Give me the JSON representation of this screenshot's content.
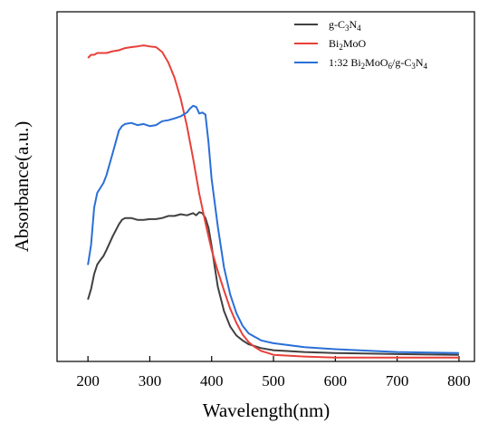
{
  "chart_data": {
    "type": "line",
    "title": "",
    "xlabel": "Wavelength(nm)",
    "ylabel": "Absorbance(a.u.)",
    "xlim": [
      150,
      825
    ],
    "ylim": [
      0,
      1.0
    ],
    "xticks": [
      "200",
      "300",
      "400",
      "500",
      "600",
      "700",
      "800"
    ],
    "y_tick_labels_shown": false,
    "grid": false,
    "legend_position": "top-right",
    "series": [
      {
        "name": "g-C3N4",
        "legend": {
          "pre": "g-C",
          "sub1": "3",
          "mid": "N",
          "sub2": "4",
          "post": ""
        },
        "color": "#404040",
        "points": [
          [
            200,
            0.177
          ],
          [
            205,
            0.207
          ],
          [
            210,
            0.25
          ],
          [
            215,
            0.277
          ],
          [
            220,
            0.29
          ],
          [
            225,
            0.301
          ],
          [
            230,
            0.319
          ],
          [
            240,
            0.358
          ],
          [
            250,
            0.392
          ],
          [
            255,
            0.405
          ],
          [
            260,
            0.41
          ],
          [
            270,
            0.41
          ],
          [
            280,
            0.405
          ],
          [
            290,
            0.405
          ],
          [
            300,
            0.407
          ],
          [
            310,
            0.407
          ],
          [
            320,
            0.41
          ],
          [
            330,
            0.416
          ],
          [
            340,
            0.416
          ],
          [
            350,
            0.421
          ],
          [
            360,
            0.418
          ],
          [
            370,
            0.424
          ],
          [
            375,
            0.418
          ],
          [
            380,
            0.427
          ],
          [
            385,
            0.424
          ],
          [
            390,
            0.41
          ],
          [
            395,
            0.382
          ],
          [
            400,
            0.33
          ],
          [
            405,
            0.27
          ],
          [
            410,
            0.213
          ],
          [
            420,
            0.144
          ],
          [
            430,
            0.1
          ],
          [
            440,
            0.074
          ],
          [
            450,
            0.06
          ],
          [
            460,
            0.049
          ],
          [
            480,
            0.038
          ],
          [
            500,
            0.032
          ],
          [
            550,
            0.027
          ],
          [
            600,
            0.024
          ],
          [
            700,
            0.021
          ],
          [
            800,
            0.019
          ]
        ]
      },
      {
        "name": "Bi2MoO",
        "legend": {
          "pre": "Bi",
          "sub1": "2",
          "mid": "MoO",
          "sub2": "",
          "post": ""
        },
        "color": "#e8403a",
        "points": [
          [
            200,
            0.868
          ],
          [
            205,
            0.877
          ],
          [
            210,
            0.877
          ],
          [
            215,
            0.882
          ],
          [
            220,
            0.882
          ],
          [
            230,
            0.882
          ],
          [
            240,
            0.887
          ],
          [
            250,
            0.89
          ],
          [
            260,
            0.896
          ],
          [
            270,
            0.899
          ],
          [
            280,
            0.901
          ],
          [
            290,
            0.904
          ],
          [
            300,
            0.901
          ],
          [
            310,
            0.899
          ],
          [
            320,
            0.885
          ],
          [
            330,
            0.855
          ],
          [
            340,
            0.811
          ],
          [
            350,
            0.751
          ],
          [
            360,
            0.674
          ],
          [
            370,
            0.58
          ],
          [
            380,
            0.479
          ],
          [
            390,
            0.396
          ],
          [
            400,
            0.319
          ],
          [
            410,
            0.258
          ],
          [
            420,
            0.203
          ],
          [
            430,
            0.151
          ],
          [
            440,
            0.11
          ],
          [
            450,
            0.077
          ],
          [
            460,
            0.055
          ],
          [
            470,
            0.041
          ],
          [
            480,
            0.03
          ],
          [
            490,
            0.025
          ],
          [
            500,
            0.019
          ],
          [
            550,
            0.014
          ],
          [
            600,
            0.011
          ],
          [
            700,
            0.011
          ],
          [
            800,
            0.011
          ]
        ]
      },
      {
        "name": "1:32 Bi2MoO6/g-C3N4",
        "legend": {
          "pre": "1:32 Bi",
          "sub1": "2",
          "mid": "MoO",
          "sub2": "6",
          "post": "/g-C",
          "sub3": "3",
          "end": "N",
          "sub4": "4"
        },
        "color": "#2a6fd6",
        "points": [
          [
            200,
            0.276
          ],
          [
            205,
            0.334
          ],
          [
            210,
            0.44
          ],
          [
            215,
            0.482
          ],
          [
            220,
            0.496
          ],
          [
            225,
            0.51
          ],
          [
            230,
            0.533
          ],
          [
            240,
            0.596
          ],
          [
            250,
            0.66
          ],
          [
            255,
            0.673
          ],
          [
            260,
            0.679
          ],
          [
            270,
            0.682
          ],
          [
            280,
            0.676
          ],
          [
            290,
            0.679
          ],
          [
            300,
            0.673
          ],
          [
            310,
            0.676
          ],
          [
            320,
            0.687
          ],
          [
            330,
            0.69
          ],
          [
            340,
            0.695
          ],
          [
            350,
            0.701
          ],
          [
            360,
            0.712
          ],
          [
            365,
            0.723
          ],
          [
            370,
            0.731
          ],
          [
            375,
            0.728
          ],
          [
            380,
            0.709
          ],
          [
            385,
            0.712
          ],
          [
            390,
            0.706
          ],
          [
            395,
            0.626
          ],
          [
            400,
            0.522
          ],
          [
            410,
            0.385
          ],
          [
            420,
            0.269
          ],
          [
            430,
            0.192
          ],
          [
            440,
            0.138
          ],
          [
            450,
            0.102
          ],
          [
            460,
            0.08
          ],
          [
            480,
            0.06
          ],
          [
            500,
            0.052
          ],
          [
            550,
            0.041
          ],
          [
            600,
            0.035
          ],
          [
            700,
            0.027
          ],
          [
            800,
            0.024
          ]
        ]
      }
    ]
  }
}
